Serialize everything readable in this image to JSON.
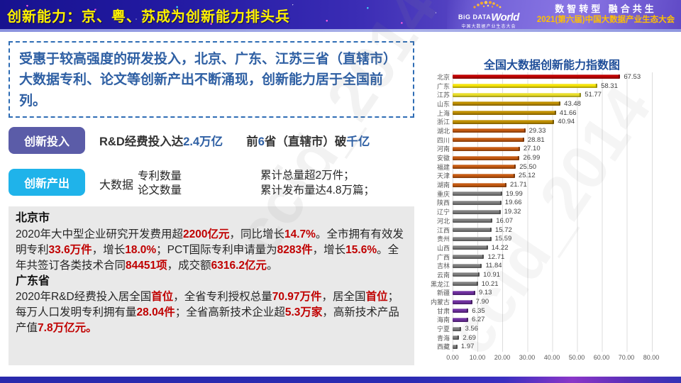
{
  "header": {
    "title": "创新能力：京、粤、苏成为创新能力排头兵",
    "logo": {
      "big": "BiG DATA",
      "world": "World",
      "sub": "中国大数据产业生态大会"
    },
    "slogan_primary": "数智转型  融合共生",
    "slogan_secondary": "2021(第六届)中国大数据产业生态大会"
  },
  "summary": {
    "text": "受惠于较高强度的研发投入，北京、广东、江苏三省（直辖市）大数据专利、论文等创新产出不断涌现，创新能力居于全国前列。"
  },
  "rows": {
    "invest": {
      "label": "创新投入",
      "segments": [
        {
          "t": "R&D经费投入达"
        },
        {
          "t": "2.4万亿",
          "c": "blue"
        },
        {
          "t": "　　前"
        },
        {
          "t": "6",
          "c": "blue"
        },
        {
          "t": "省（直辖市）破"
        },
        {
          "t": "千亿",
          "c": "blue"
        }
      ]
    },
    "output": {
      "label": "创新产出",
      "prefix": "大数据",
      "stack": [
        "专利数量",
        "论文数量"
      ],
      "results": [
        "累计总量超2万件；",
        "累计发布量达4.8万篇；"
      ]
    }
  },
  "detail": {
    "beijing": {
      "title": "北京市",
      "segments": [
        {
          "t": "2020年大中型企业研究开发费用超"
        },
        {
          "t": "2200亿元",
          "c": "red"
        },
        {
          "t": "，同比增长"
        },
        {
          "t": "14.7%",
          "c": "red"
        },
        {
          "t": "。全市拥有有效发明专利"
        },
        {
          "t": "33.6万件",
          "c": "red"
        },
        {
          "t": "，增长"
        },
        {
          "t": "18.0%",
          "c": "red"
        },
        {
          "t": "；PCT国际专利申请量为"
        },
        {
          "t": "8283件",
          "c": "red"
        },
        {
          "t": "，增长"
        },
        {
          "t": "15.6%",
          "c": "red"
        },
        {
          "t": "。全年共签订各类技术合同"
        },
        {
          "t": "84451项",
          "c": "red"
        },
        {
          "t": "，成交额"
        },
        {
          "t": "6316.2亿元",
          "c": "red"
        },
        {
          "t": "。"
        }
      ]
    },
    "guangdong": {
      "title": "广东省",
      "segments": [
        {
          "t": "2020年R&D经费投入居全国"
        },
        {
          "t": "首位",
          "c": "red"
        },
        {
          "t": "，全省专利授权总量"
        },
        {
          "t": "70.97万件",
          "c": "red"
        },
        {
          "t": "，居全国"
        },
        {
          "t": "首位",
          "c": "red"
        },
        {
          "t": "；每万人口发明专利拥有量"
        },
        {
          "t": "28.04件",
          "c": "red"
        },
        {
          "t": "；全省高新技术企业超"
        },
        {
          "t": "5.3万家",
          "c": "red"
        },
        {
          "t": "，高新技术产品产值"
        },
        {
          "t": "7.8万亿元。",
          "c": "red"
        }
      ]
    }
  },
  "chart_data": {
    "type": "bar",
    "orientation": "horizontal",
    "title": "全国大数据创新能力指数图",
    "xlabel": "",
    "ylabel": "",
    "xlim": [
      0,
      90
    ],
    "grid": true,
    "value_labels": true,
    "x_ticks": [
      "0.00",
      "10.00",
      "20.00",
      "30.00",
      "40.00",
      "50.00",
      "60.00",
      "70.00",
      "80.00"
    ],
    "categories": [
      "北京",
      "广东",
      "江苏",
      "山东",
      "上海",
      "浙江",
      "湖北",
      "四川",
      "河南",
      "安徽",
      "福建",
      "天津",
      "湖南",
      "重庆",
      "陕西",
      "辽宁",
      "河北",
      "江西",
      "贵州",
      "山西",
      "广西",
      "吉林",
      "云南",
      "黑龙江",
      "新疆",
      "内蒙古",
      "甘肃",
      "海南",
      "宁夏",
      "青海",
      "西藏"
    ],
    "values": [
      67.53,
      58.31,
      51.77,
      43.48,
      41.66,
      40.94,
      29.33,
      28.81,
      27.1,
      26.99,
      25.5,
      25.12,
      21.71,
      19.99,
      19.66,
      19.32,
      16.07,
      15.72,
      15.59,
      14.22,
      12.71,
      11.84,
      10.91,
      10.21,
      9.13,
      7.9,
      6.35,
      6.27,
      3.56,
      2.69,
      1.97
    ],
    "colors": [
      "#C00000",
      "#F5E40A",
      "#E9DD2A",
      "#BF8F00",
      "#BF8F00",
      "#BF8F00",
      "#C55A11",
      "#C55A11",
      "#C55A11",
      "#C55A11",
      "#C55A11",
      "#C55A11",
      "#C55A11",
      "#7F7F7F",
      "#7F7F7F",
      "#7F7F7F",
      "#7F7F7F",
      "#7F7F7F",
      "#7F7F7F",
      "#7F7F7F",
      "#7F7F7F",
      "#7F7F7F",
      "#7F7F7F",
      "#7F7F7F",
      "#7030A0",
      "#7030A0",
      "#7030A0",
      "#7030A0",
      "#7F7F7F",
      "#7F7F7F",
      "#7F7F7F"
    ]
  },
  "watermark": "ccid_2014",
  "palette": {
    "title_yellow": "#FFF200",
    "chip_invest": "#5B5CA8",
    "chip_output": "#1FB3EA",
    "highlight_red": "#C00000",
    "highlight_blue": "#2E5FA3",
    "slogan_gold": "#FFC000",
    "chart_title_blue": "#1F4E99"
  }
}
